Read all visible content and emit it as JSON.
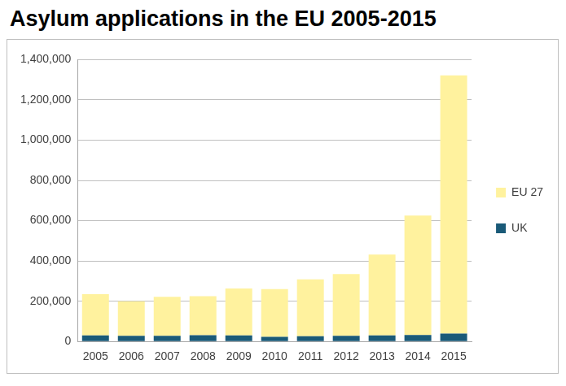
{
  "chart_data": {
    "type": "bar",
    "title": "Asylum applications in the EU 2005-2015",
    "categories": [
      "2005",
      "2006",
      "2007",
      "2008",
      "2009",
      "2010",
      "2011",
      "2012",
      "2013",
      "2014",
      "2015"
    ],
    "series": [
      {
        "name": "UK",
        "color": "#1a5a78",
        "values": [
          30000,
          28000,
          28000,
          31000,
          30000,
          23000,
          26000,
          28000,
          30000,
          32000,
          39000
        ]
      },
      {
        "name": "EU 27",
        "color": "#fff29e",
        "values": [
          205000,
          172000,
          194000,
          194000,
          233000,
          237000,
          283000,
          307000,
          402000,
          594000,
          1283000
        ]
      }
    ],
    "ylim": [
      0,
      1400000
    ],
    "yticks": [
      0,
      {
        "value": 200000,
        "label": "200,000"
      },
      {
        "value": 400000,
        "label": "400,000"
      },
      {
        "value": 600000,
        "label": "600,000"
      },
      {
        "value": 800000,
        "label": "800,000"
      },
      {
        "value": 1000000,
        "label": "1,000,000"
      },
      {
        "value": 1200000,
        "label": "1,200,000"
      },
      {
        "value": 1400000,
        "label": "1,400,000"
      }
    ],
    "stacked": true,
    "grid": true,
    "legend": "right"
  }
}
